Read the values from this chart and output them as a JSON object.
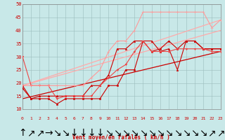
{
  "xlabel": "Vent moyen/en rafales ( km/h )",
  "bg_color": "#c8e8e8",
  "grid_color": "#9bbcbc",
  "text_color": "#cc0000",
  "xlim": [
    0,
    23
  ],
  "ylim": [
    10,
    50
  ],
  "yticks": [
    10,
    15,
    20,
    25,
    30,
    35,
    40,
    45,
    50
  ],
  "xticks": [
    0,
    1,
    2,
    3,
    4,
    5,
    6,
    7,
    8,
    9,
    10,
    11,
    12,
    13,
    14,
    15,
    16,
    17,
    18,
    19,
    20,
    21,
    22,
    23
  ],
  "lines": [
    {
      "x": [
        0,
        1,
        2,
        3,
        4,
        5,
        6,
        7,
        8,
        9,
        10,
        11,
        12,
        13,
        14,
        15,
        16,
        17,
        18,
        19,
        20,
        21,
        22,
        23
      ],
      "y": [
        19,
        14,
        14,
        14,
        12,
        14,
        14,
        14,
        14,
        14,
        19,
        19,
        25,
        25,
        36,
        32,
        33,
        36,
        33,
        36,
        36,
        33,
        33,
        33
      ],
      "color": "#cc0000",
      "lw": 0.8,
      "marker": "s",
      "ms": 1.8,
      "zorder": 3
    },
    {
      "x": [
        0,
        1,
        2,
        3,
        4,
        5,
        6,
        7,
        8,
        9,
        10,
        11,
        12,
        13,
        14,
        15,
        16,
        17,
        18,
        19,
        20,
        21,
        22,
        23
      ],
      "y": [
        18,
        14,
        15,
        15,
        15,
        15,
        15,
        15,
        19,
        19,
        23,
        33,
        33,
        36,
        36,
        36,
        32,
        33,
        25,
        36,
        36,
        33,
        33,
        33
      ],
      "color": "#cc0000",
      "lw": 0.8,
      "marker": "^",
      "ms": 1.8,
      "zorder": 3
    },
    {
      "x": [
        0,
        1,
        2,
        3,
        4,
        5,
        6,
        7,
        8,
        9,
        10,
        11,
        12,
        13,
        14,
        15,
        16,
        17,
        18,
        19,
        20,
        21,
        22,
        23
      ],
      "y": [
        30,
        19,
        19,
        19,
        14,
        15,
        15,
        15,
        15,
        19,
        22,
        25,
        27,
        32,
        36,
        32,
        32,
        32,
        33,
        33,
        33,
        33,
        32,
        32
      ],
      "color": "#ee4444",
      "lw": 0.8,
      "marker": "v",
      "ms": 1.8,
      "zorder": 3
    },
    {
      "x": [
        0,
        1,
        2,
        3,
        4,
        5,
        6,
        7,
        8,
        9,
        10,
        11,
        12,
        13,
        14,
        15,
        16,
        17,
        18,
        19,
        20,
        21,
        22,
        23
      ],
      "y": [
        19,
        19,
        19,
        19,
        19,
        19,
        19,
        19,
        22,
        25,
        32,
        36,
        36,
        40,
        47,
        47,
        47,
        47,
        47,
        47,
        47,
        47,
        41,
        44
      ],
      "color": "#ff9999",
      "lw": 0.8,
      "marker": "+",
      "ms": 2.5,
      "zorder": 3
    },
    {
      "x": [
        0,
        23
      ],
      "y": [
        14,
        32
      ],
      "color": "#cc0000",
      "lw": 0.9,
      "marker": "",
      "ms": 0,
      "zorder": 2
    },
    {
      "x": [
        0,
        23
      ],
      "y": [
        19,
        44
      ],
      "color": "#ffaaaa",
      "lw": 0.9,
      "marker": "",
      "ms": 0,
      "zorder": 2
    },
    {
      "x": [
        0,
        23
      ],
      "y": [
        19,
        40
      ],
      "color": "#ffaaaa",
      "lw": 0.9,
      "marker": "",
      "ms": 0,
      "zorder": 2
    }
  ],
  "wind_arrows": [
    "↑",
    "↗",
    "↗",
    "→",
    "↘",
    "↘",
    "↓",
    "↓",
    "↓",
    "↓",
    "↘",
    "↘",
    "↘",
    "↘",
    "↘",
    "↘",
    "↘",
    "↘",
    "↘",
    "↘",
    "↘",
    "↘",
    "↗",
    "↗"
  ]
}
